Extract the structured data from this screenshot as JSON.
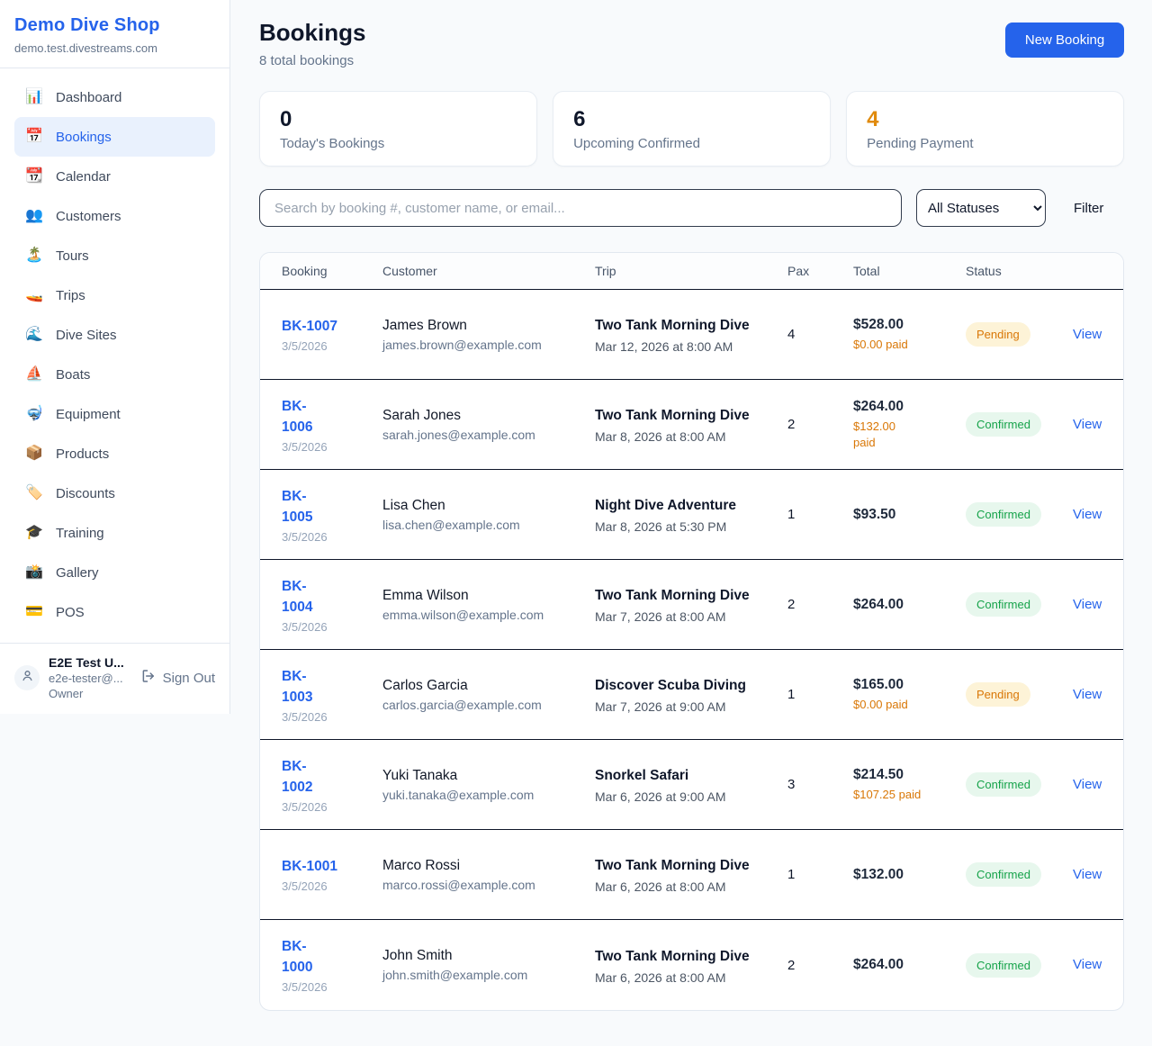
{
  "brand": {
    "name": "Demo Dive Shop",
    "domain": "demo.test.divestreams.com"
  },
  "sidebar": {
    "items": [
      {
        "slug": "dashboard",
        "label": "Dashboard",
        "icon": "📊",
        "active": false
      },
      {
        "slug": "bookings",
        "label": "Bookings",
        "icon": "📅",
        "active": true
      },
      {
        "slug": "calendar",
        "label": "Calendar",
        "icon": "📆",
        "active": false
      },
      {
        "slug": "customers",
        "label": "Customers",
        "icon": "👥",
        "active": false
      },
      {
        "slug": "tours",
        "label": "Tours",
        "icon": "🏝️",
        "active": false
      },
      {
        "slug": "trips",
        "label": "Trips",
        "icon": "🚤",
        "active": false
      },
      {
        "slug": "dive-sites",
        "label": "Dive Sites",
        "icon": "🌊",
        "active": false
      },
      {
        "slug": "boats",
        "label": "Boats",
        "icon": "⛵",
        "active": false
      },
      {
        "slug": "equipment",
        "label": "Equipment",
        "icon": "🤿",
        "active": false
      },
      {
        "slug": "products",
        "label": "Products",
        "icon": "📦",
        "active": false
      },
      {
        "slug": "discounts",
        "label": "Discounts",
        "icon": "🏷️",
        "active": false
      },
      {
        "slug": "training",
        "label": "Training",
        "icon": "🎓",
        "active": false
      },
      {
        "slug": "gallery",
        "label": "Gallery",
        "icon": "📸",
        "active": false
      },
      {
        "slug": "pos",
        "label": "POS",
        "icon": "💳",
        "active": false
      }
    ]
  },
  "user": {
    "name": "E2E Test U...",
    "email": "e2e-tester@...",
    "role": "Owner",
    "sign_out_label": "Sign Out"
  },
  "page": {
    "title": "Bookings",
    "subtitle": "8 total bookings",
    "new_booking_label": "New Booking"
  },
  "stats": [
    {
      "value": "0",
      "label": "Today's Bookings",
      "highlight": false
    },
    {
      "value": "6",
      "label": "Upcoming Confirmed",
      "highlight": false
    },
    {
      "value": "4",
      "label": "Pending Payment",
      "highlight": true
    }
  ],
  "controls": {
    "search_placeholder": "Search by booking #, customer name, or email...",
    "status_filter_value": "All Statuses",
    "filter_label": "Filter"
  },
  "table": {
    "columns": [
      "Booking",
      "Customer",
      "Trip",
      "Pax",
      "Total",
      "Status"
    ],
    "view_label": "View",
    "rows": [
      {
        "id": "BK-1007",
        "id_wrap": false,
        "date": "3/5/2026",
        "customer_name": "James Brown",
        "customer_email": "james.brown@example.com",
        "trip": "Two Tank Morning Dive",
        "when": "Mar 12, 2026 at 8:00 AM",
        "pax": "4",
        "total": "$528.00",
        "paid": "$0.00 paid",
        "paid_wrap": false,
        "status": "Pending"
      },
      {
        "id": "BK-1006",
        "id_wrap": true,
        "date": "3/5/2026",
        "customer_name": "Sarah Jones",
        "customer_email": "sarah.jones@example.com",
        "trip": "Two Tank Morning Dive",
        "when": "Mar 8, 2026 at 8:00 AM",
        "pax": "2",
        "total": "$264.00",
        "paid": "$132.00 paid",
        "paid_wrap": true,
        "status": "Confirmed"
      },
      {
        "id": "BK-1005",
        "id_wrap": true,
        "date": "3/5/2026",
        "customer_name": "Lisa Chen",
        "customer_email": "lisa.chen@example.com",
        "trip": "Night Dive Adventure",
        "when": "Mar 8, 2026 at 5:30 PM",
        "pax": "1",
        "total": "$93.50",
        "paid": null,
        "paid_wrap": false,
        "status": "Confirmed"
      },
      {
        "id": "BK-1004",
        "id_wrap": true,
        "date": "3/5/2026",
        "customer_name": "Emma Wilson",
        "customer_email": "emma.wilson@example.com",
        "trip": "Two Tank Morning Dive",
        "when": "Mar 7, 2026 at 8:00 AM",
        "pax": "2",
        "total": "$264.00",
        "paid": null,
        "paid_wrap": false,
        "status": "Confirmed"
      },
      {
        "id": "BK-1003",
        "id_wrap": true,
        "date": "3/5/2026",
        "customer_name": "Carlos Garcia",
        "customer_email": "carlos.garcia@example.com",
        "trip": "Discover Scuba Diving",
        "when": "Mar 7, 2026 at 9:00 AM",
        "pax": "1",
        "total": "$165.00",
        "paid": "$0.00 paid",
        "paid_wrap": false,
        "status": "Pending"
      },
      {
        "id": "BK-1002",
        "id_wrap": true,
        "date": "3/5/2026",
        "customer_name": "Yuki Tanaka",
        "customer_email": "yuki.tanaka@example.com",
        "trip": "Snorkel Safari",
        "when": "Mar 6, 2026 at 9:00 AM",
        "pax": "3",
        "total": "$214.50",
        "paid": "$107.25 paid",
        "paid_wrap": false,
        "status": "Confirmed"
      },
      {
        "id": "BK-1001",
        "id_wrap": false,
        "date": "3/5/2026",
        "customer_name": "Marco Rossi",
        "customer_email": "marco.rossi@example.com",
        "trip": "Two Tank Morning Dive",
        "when": "Mar 6, 2026 at 8:00 AM",
        "pax": "1",
        "total": "$132.00",
        "paid": null,
        "paid_wrap": false,
        "status": "Confirmed"
      },
      {
        "id": "BK-1000",
        "id_wrap": true,
        "date": "3/5/2026",
        "customer_name": "John Smith",
        "customer_email": "john.smith@example.com",
        "trip": "Two Tank Morning Dive",
        "when": "Mar 6, 2026 at 8:00 AM",
        "pax": "2",
        "total": "$264.00",
        "paid": null,
        "paid_wrap": false,
        "status": "Confirmed"
      }
    ]
  },
  "colors": {
    "accent": "#2563eb",
    "pending_text": "#d97706",
    "pending_bg": "#fdf3d7",
    "confirmed_text": "#16a34a",
    "confirmed_bg": "#e7f7ed",
    "row_divider": "#0f172a",
    "page_bg": "#f8fafc"
  }
}
